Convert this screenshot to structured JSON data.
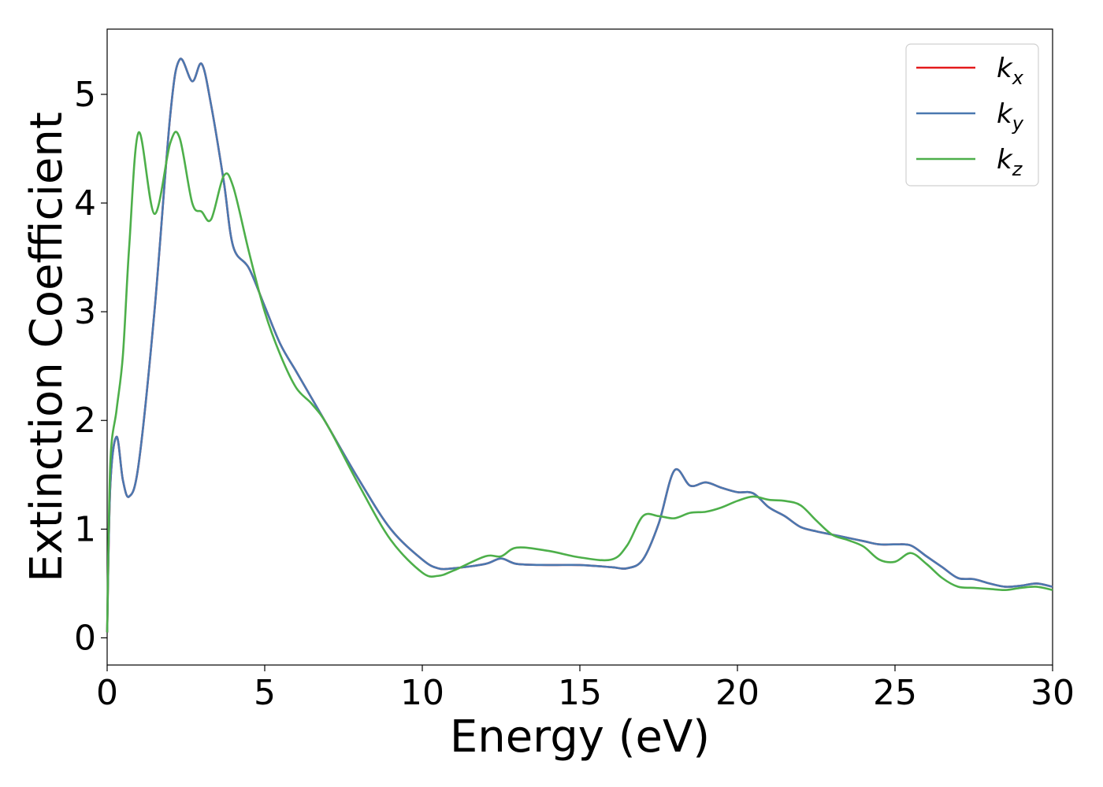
{
  "chart_data": {
    "type": "line",
    "xlabel": "Energy (eV)",
    "ylabel": "Extinction Coefficient",
    "xlim": [
      0,
      30
    ],
    "ylim": [
      -0.25,
      5.6
    ],
    "xticks": [
      "0",
      "5",
      "10",
      "15",
      "20",
      "25",
      "30"
    ],
    "yticks": [
      "0",
      "1",
      "2",
      "3",
      "4",
      "5"
    ],
    "grid": false,
    "legend_position": "top-right",
    "x": [
      0,
      0.1,
      0.3,
      0.5,
      0.7,
      1.0,
      1.5,
      2.0,
      2.3,
      2.7,
      3.0,
      3.3,
      3.7,
      4.0,
      4.5,
      5.0,
      5.5,
      6.0,
      6.5,
      7.0,
      8.0,
      9.0,
      10.0,
      10.5,
      11.0,
      12.0,
      12.5,
      13.0,
      14.0,
      15.0,
      16.0,
      16.5,
      17.0,
      17.5,
      18.0,
      18.5,
      19.0,
      19.5,
      20.0,
      20.5,
      21.0,
      21.5,
      22.0,
      22.5,
      23.0,
      23.5,
      24.0,
      24.5,
      25.0,
      25.5,
      26.0,
      26.5,
      27.0,
      27.5,
      28.0,
      28.5,
      29.0,
      29.5,
      30.0
    ],
    "series": [
      {
        "name": "k_x",
        "color": "#e41a1c",
        "values": [
          0.05,
          1.4,
          1.85,
          1.45,
          1.3,
          1.6,
          3.0,
          4.8,
          5.32,
          5.12,
          5.28,
          4.9,
          4.2,
          3.6,
          3.4,
          3.05,
          2.7,
          2.45,
          2.2,
          1.95,
          1.45,
          1.0,
          0.72,
          0.64,
          0.64,
          0.68,
          0.73,
          0.68,
          0.67,
          0.67,
          0.65,
          0.64,
          0.72,
          1.05,
          1.54,
          1.4,
          1.43,
          1.38,
          1.34,
          1.33,
          1.2,
          1.12,
          1.02,
          0.98,
          0.95,
          0.92,
          0.89,
          0.86,
          0.86,
          0.85,
          0.75,
          0.65,
          0.55,
          0.54,
          0.5,
          0.47,
          0.48,
          0.5,
          0.47
        ]
      },
      {
        "name": "k_y",
        "color": "#4a78b0",
        "values": [
          0.05,
          1.4,
          1.85,
          1.45,
          1.3,
          1.6,
          3.0,
          4.8,
          5.32,
          5.12,
          5.28,
          4.9,
          4.2,
          3.6,
          3.4,
          3.05,
          2.7,
          2.45,
          2.2,
          1.95,
          1.45,
          1.0,
          0.72,
          0.64,
          0.64,
          0.68,
          0.73,
          0.68,
          0.67,
          0.67,
          0.65,
          0.64,
          0.72,
          1.05,
          1.54,
          1.4,
          1.43,
          1.38,
          1.34,
          1.33,
          1.2,
          1.12,
          1.02,
          0.98,
          0.95,
          0.92,
          0.89,
          0.86,
          0.86,
          0.85,
          0.75,
          0.65,
          0.55,
          0.54,
          0.5,
          0.47,
          0.48,
          0.5,
          0.47
        ]
      },
      {
        "name": "k_z",
        "color": "#4daf4a",
        "values": [
          0.05,
          1.6,
          2.1,
          2.6,
          3.6,
          4.65,
          3.9,
          4.55,
          4.6,
          4.0,
          3.92,
          3.85,
          4.25,
          4.15,
          3.55,
          3.0,
          2.6,
          2.3,
          2.15,
          1.95,
          1.4,
          0.9,
          0.6,
          0.57,
          0.62,
          0.75,
          0.75,
          0.83,
          0.8,
          0.74,
          0.72,
          0.85,
          1.12,
          1.12,
          1.1,
          1.15,
          1.16,
          1.2,
          1.26,
          1.3,
          1.27,
          1.26,
          1.22,
          1.08,
          0.95,
          0.9,
          0.84,
          0.72,
          0.7,
          0.78,
          0.68,
          0.55,
          0.47,
          0.46,
          0.45,
          0.44,
          0.46,
          0.47,
          0.44
        ]
      }
    ],
    "legend": [
      {
        "letter": "k",
        "sub": "x",
        "color": "#e41a1c"
      },
      {
        "letter": "k",
        "sub": "y",
        "color": "#4a78b0"
      },
      {
        "letter": "k",
        "sub": "z",
        "color": "#4daf4a"
      }
    ]
  }
}
